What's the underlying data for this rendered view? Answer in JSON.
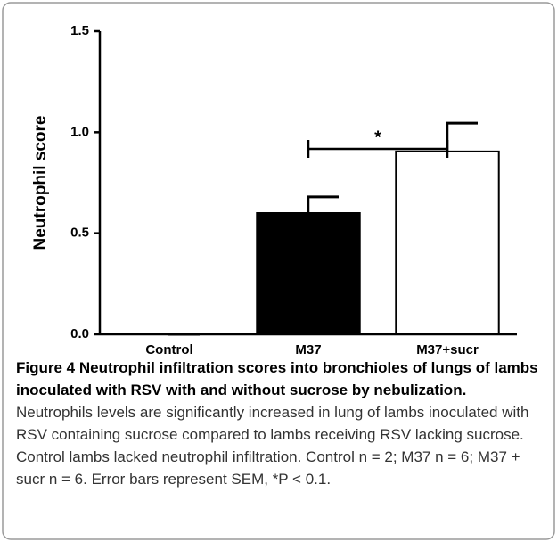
{
  "chart_data": {
    "type": "bar",
    "categories": [
      "Control",
      "M37",
      "M37+sucr"
    ],
    "values": [
      0,
      0.6,
      0.905
    ],
    "errors": [
      0,
      0.08,
      0.14
    ],
    "colors": [
      "#000000",
      "#000000",
      "#ffffff"
    ],
    "ylabel": "Neutrophil score",
    "ylim": [
      0,
      1.5
    ],
    "yticks": [
      {
        "value": 0,
        "label": "0.0"
      },
      0.5,
      {
        "value": 1,
        "label": "1.0"
      },
      1.5
    ],
    "annotations": [
      {
        "text": "*"
      }
    ]
  },
  "caption": {
    "label": "Figure 4",
    "title": "Neutrophil infiltration scores into bronchioles of lungs of lambs inoculated with RSV with and without sucrose by nebulization.",
    "text": "Neutrophils levels are significantly increased in lung of lambs inoculated with RSV containing sucrose compared to lambs receiving RSV lacking sucrose. Control lambs lacked neutrophil infiltration. Control n = 2; M37 n = 6; M37 + sucr n = 6. Error bars represent SEM, *P < 0.1."
  }
}
